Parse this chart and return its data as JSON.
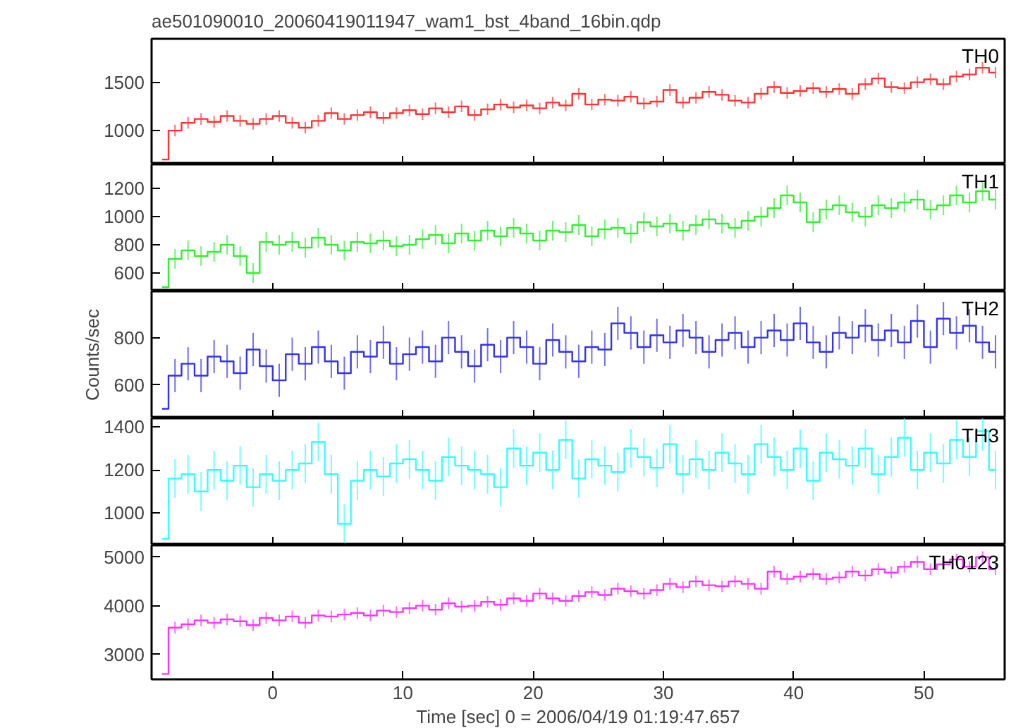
{
  "chart_data": [
    {
      "type": "step",
      "title": "ae501090010_20060419011947_wam1_bst_4band_16bin.qdp",
      "legend": "top right",
      "tick_labels": "y",
      "marker": "none",
      "x": [
        -8.5,
        -7.5,
        -6.5,
        -5.5,
        -4.5,
        -3.5,
        -2.5,
        -1.5,
        -0.5,
        0.5,
        1.5,
        2.5,
        3.5,
        4.5,
        5.5,
        6.5,
        7.5,
        8.5,
        9.5,
        10.5,
        11.5,
        12.5,
        13.5,
        14.5,
        15.5,
        16.5,
        17.5,
        18.5,
        19.5,
        20.5,
        21.5,
        22.5,
        23.5,
        24.5,
        25.5,
        26.5,
        27.5,
        28.5,
        29.5,
        30.5,
        31.5,
        32.5,
        33.5,
        34.5,
        35.5,
        36.5,
        37.5,
        38.5,
        39.5,
        40.5,
        41.5,
        42.5,
        43.5,
        44.5,
        45.5,
        46.5,
        47.5,
        48.5,
        49.5,
        50.5,
        51.5,
        52.5,
        53.5,
        54.5,
        55.5
      ],
      "xlim": [
        -9.3,
        56.2
      ],
      "xticks": [
        0,
        10,
        20,
        30,
        40,
        50
      ],
      "ylim": [
        650,
        1950
      ],
      "yticks": [
        1000,
        1500
      ],
      "series": [
        {
          "name": "TH0",
          "color": "#ff3333",
          "errors": [
            null,
            60,
            60,
            60,
            60,
            60,
            60,
            60,
            60,
            60,
            60,
            60,
            60,
            60,
            60,
            60,
            60,
            60,
            60,
            60,
            60,
            60,
            60,
            60,
            60,
            60,
            60,
            60,
            60,
            60,
            60,
            60,
            60,
            60,
            60,
            60,
            60,
            60,
            60,
            60,
            60,
            60,
            60,
            60,
            60,
            60,
            60,
            60,
            60,
            60,
            60,
            60,
            60,
            60,
            60,
            60,
            60,
            60,
            60,
            60,
            60,
            60,
            60,
            60,
            60
          ],
          "values": [
            700,
            1000,
            1080,
            1120,
            1090,
            1150,
            1100,
            1070,
            1120,
            1150,
            1080,
            1030,
            1100,
            1180,
            1120,
            1160,
            1190,
            1130,
            1180,
            1210,
            1170,
            1230,
            1190,
            1250,
            1160,
            1220,
            1270,
            1240,
            1260,
            1230,
            1290,
            1260,
            1380,
            1270,
            1320,
            1310,
            1350,
            1280,
            1300,
            1420,
            1290,
            1340,
            1400,
            1370,
            1310,
            1290,
            1380,
            1450,
            1390,
            1410,
            1440,
            1400,
            1430,
            1380,
            1480,
            1540,
            1450,
            1440,
            1500,
            1530,
            1480,
            1560,
            1580,
            1650,
            1600
          ]
        }
      ]
    },
    {
      "type": "step",
      "legend": "top right",
      "tick_labels": "y",
      "marker": "none",
      "x": [
        -8.5,
        -7.5,
        -6.5,
        -5.5,
        -4.5,
        -3.5,
        -2.5,
        -1.5,
        -0.5,
        0.5,
        1.5,
        2.5,
        3.5,
        4.5,
        5.5,
        6.5,
        7.5,
        8.5,
        9.5,
        10.5,
        11.5,
        12.5,
        13.5,
        14.5,
        15.5,
        16.5,
        17.5,
        18.5,
        19.5,
        20.5,
        21.5,
        22.5,
        23.5,
        24.5,
        25.5,
        26.5,
        27.5,
        28.5,
        29.5,
        30.5,
        31.5,
        32.5,
        33.5,
        34.5,
        35.5,
        36.5,
        37.5,
        38.5,
        39.5,
        40.5,
        41.5,
        42.5,
        43.5,
        44.5,
        45.5,
        46.5,
        47.5,
        48.5,
        49.5,
        50.5,
        51.5,
        52.5,
        53.5,
        54.5,
        55.5
      ],
      "xlim": [
        -9.3,
        56.2
      ],
      "xticks": [
        0,
        10,
        20,
        30,
        40,
        50
      ],
      "ylim": [
        470,
        1370
      ],
      "yticks": [
        600,
        800,
        1000,
        1200
      ],
      "series": [
        {
          "name": "TH1",
          "color": "#33ee33",
          "errors": [
            null,
            70,
            70,
            70,
            70,
            70,
            70,
            70,
            70,
            70,
            70,
            70,
            70,
            70,
            70,
            70,
            70,
            70,
            70,
            70,
            70,
            70,
            70,
            70,
            70,
            70,
            70,
            70,
            70,
            70,
            70,
            70,
            70,
            70,
            70,
            70,
            70,
            70,
            70,
            70,
            70,
            70,
            70,
            70,
            70,
            70,
            70,
            70,
            70,
            70,
            70,
            70,
            70,
            70,
            70,
            70,
            70,
            70,
            70,
            70,
            70,
            70,
            70,
            70,
            70
          ],
          "values": [
            500,
            700,
            760,
            720,
            750,
            800,
            720,
            600,
            820,
            800,
            820,
            780,
            850,
            800,
            760,
            820,
            810,
            830,
            790,
            800,
            840,
            870,
            810,
            880,
            830,
            900,
            860,
            920,
            880,
            830,
            900,
            890,
            940,
            860,
            910,
            920,
            880,
            960,
            930,
            950,
            900,
            940,
            980,
            950,
            920,
            970,
            1000,
            1060,
            1150,
            1100,
            960,
            1050,
            1080,
            1030,
            1000,
            1080,
            1060,
            1100,
            1120,
            1050,
            1080,
            1150,
            1100,
            1180,
            1120
          ]
        }
      ]
    },
    {
      "type": "step",
      "legend": "top right",
      "tick_labels": "y",
      "marker": "none",
      "ylabel": "Counts/sec",
      "x": [
        -8.5,
        -7.5,
        -6.5,
        -5.5,
        -4.5,
        -3.5,
        -2.5,
        -1.5,
        -0.5,
        0.5,
        1.5,
        2.5,
        3.5,
        4.5,
        5.5,
        6.5,
        7.5,
        8.5,
        9.5,
        10.5,
        11.5,
        12.5,
        13.5,
        14.5,
        15.5,
        16.5,
        17.5,
        18.5,
        19.5,
        20.5,
        21.5,
        22.5,
        23.5,
        24.5,
        25.5,
        26.5,
        27.5,
        28.5,
        29.5,
        30.5,
        31.5,
        32.5,
        33.5,
        34.5,
        35.5,
        36.5,
        37.5,
        38.5,
        39.5,
        40.5,
        41.5,
        42.5,
        43.5,
        44.5,
        45.5,
        46.5,
        47.5,
        48.5,
        49.5,
        50.5,
        51.5,
        52.5,
        53.5,
        54.5,
        55.5
      ],
      "xlim": [
        -9.3,
        56.2
      ],
      "xticks": [
        0,
        10,
        20,
        30,
        40,
        50
      ],
      "ylim": [
        460,
        995
      ],
      "yticks": [
        600,
        800
      ],
      "series": [
        {
          "name": "TH2",
          "color": "#3333ee",
          "errors": [
            null,
            70,
            70,
            70,
            70,
            70,
            70,
            70,
            70,
            70,
            70,
            70,
            70,
            70,
            70,
            70,
            70,
            70,
            70,
            70,
            70,
            70,
            70,
            70,
            70,
            70,
            70,
            70,
            70,
            70,
            70,
            70,
            70,
            70,
            70,
            70,
            70,
            70,
            70,
            70,
            70,
            70,
            70,
            70,
            70,
            70,
            70,
            70,
            70,
            70,
            70,
            70,
            70,
            70,
            70,
            70,
            70,
            70,
            70,
            70,
            70,
            70,
            70,
            70,
            70
          ],
          "values": [
            500,
            640,
            690,
            640,
            720,
            700,
            650,
            750,
            680,
            620,
            730,
            690,
            760,
            700,
            650,
            740,
            720,
            780,
            690,
            730,
            760,
            700,
            800,
            740,
            680,
            770,
            720,
            800,
            760,
            690,
            790,
            740,
            700,
            760,
            750,
            860,
            820,
            760,
            810,
            780,
            830,
            800,
            740,
            790,
            820,
            760,
            800,
            830,
            790,
            860,
            780,
            740,
            820,
            800,
            850,
            790,
            830,
            780,
            870,
            760,
            880,
            820,
            850,
            780,
            740
          ]
        }
      ]
    },
    {
      "type": "step",
      "legend": "top right",
      "tick_labels": "y",
      "marker": "none",
      "x": [
        -8.5,
        -7.5,
        -6.5,
        -5.5,
        -4.5,
        -3.5,
        -2.5,
        -1.5,
        -0.5,
        0.5,
        1.5,
        2.5,
        3.5,
        4.5,
        5.5,
        6.5,
        7.5,
        8.5,
        9.5,
        10.5,
        11.5,
        12.5,
        13.5,
        14.5,
        15.5,
        16.5,
        17.5,
        18.5,
        19.5,
        20.5,
        21.5,
        22.5,
        23.5,
        24.5,
        25.5,
        26.5,
        27.5,
        28.5,
        29.5,
        30.5,
        31.5,
        32.5,
        33.5,
        34.5,
        35.5,
        36.5,
        37.5,
        38.5,
        39.5,
        40.5,
        41.5,
        42.5,
        43.5,
        44.5,
        45.5,
        46.5,
        47.5,
        48.5,
        49.5,
        50.5,
        51.5,
        52.5,
        53.5,
        54.5,
        55.5
      ],
      "xlim": [
        -9.3,
        56.2
      ],
      "xticks": [
        0,
        10,
        20,
        30,
        40,
        50
      ],
      "ylim": [
        850,
        1440
      ],
      "yticks": [
        1000,
        1200,
        1400
      ],
      "series": [
        {
          "name": "TH3",
          "color": "#33ffff",
          "errors": [
            null,
            90,
            90,
            90,
            90,
            90,
            90,
            90,
            90,
            90,
            90,
            90,
            90,
            90,
            90,
            90,
            90,
            90,
            90,
            90,
            90,
            90,
            90,
            90,
            90,
            90,
            90,
            90,
            90,
            90,
            90,
            90,
            90,
            90,
            90,
            90,
            90,
            90,
            90,
            90,
            90,
            90,
            90,
            90,
            90,
            90,
            90,
            90,
            90,
            90,
            90,
            90,
            90,
            90,
            90,
            90,
            90,
            90,
            90,
            90,
            90,
            90,
            90,
            90,
            90
          ],
          "values": [
            880,
            1160,
            1180,
            1100,
            1200,
            1150,
            1220,
            1120,
            1180,
            1150,
            1200,
            1230,
            1330,
            1180,
            950,
            1150,
            1200,
            1170,
            1230,
            1250,
            1200,
            1150,
            1260,
            1220,
            1200,
            1180,
            1120,
            1300,
            1220,
            1280,
            1200,
            1340,
            1160,
            1250,
            1220,
            1190,
            1300,
            1260,
            1210,
            1320,
            1180,
            1250,
            1200,
            1280,
            1230,
            1180,
            1320,
            1260,
            1200,
            1300,
            1150,
            1280,
            1250,
            1220,
            1300,
            1180,
            1260,
            1350,
            1200,
            1280,
            1230,
            1340,
            1260,
            1380,
            1200
          ]
        }
      ]
    },
    {
      "type": "step",
      "legend": "top right",
      "marker": "none",
      "xlabel": "Time [sec] 0 = 2006/04/19 01:19:47.657",
      "x": [
        -8.5,
        -7.5,
        -6.5,
        -5.5,
        -4.5,
        -3.5,
        -2.5,
        -1.5,
        -0.5,
        0.5,
        1.5,
        2.5,
        3.5,
        4.5,
        5.5,
        6.5,
        7.5,
        8.5,
        9.5,
        10.5,
        11.5,
        12.5,
        13.5,
        14.5,
        15.5,
        16.5,
        17.5,
        18.5,
        19.5,
        20.5,
        21.5,
        22.5,
        23.5,
        24.5,
        25.5,
        26.5,
        27.5,
        28.5,
        29.5,
        30.5,
        31.5,
        32.5,
        33.5,
        34.5,
        35.5,
        36.5,
        37.5,
        38.5,
        39.5,
        40.5,
        41.5,
        42.5,
        43.5,
        44.5,
        45.5,
        46.5,
        47.5,
        48.5,
        49.5,
        50.5,
        51.5,
        52.5,
        53.5,
        54.5,
        55.5
      ],
      "xlim": [
        -9.3,
        56.2
      ],
      "xticks": [
        0,
        10,
        20,
        30,
        40,
        50
      ],
      "ylim": [
        2490,
        5240
      ],
      "yticks": [
        3000,
        4000,
        5000
      ],
      "series": [
        {
          "name": "TH0123",
          "color": "#ff33ff",
          "errors": [
            null,
            120,
            120,
            120,
            120,
            120,
            120,
            120,
            120,
            120,
            120,
            120,
            120,
            120,
            120,
            120,
            120,
            120,
            120,
            120,
            120,
            120,
            120,
            120,
            120,
            120,
            120,
            120,
            120,
            120,
            120,
            120,
            120,
            120,
            120,
            120,
            120,
            120,
            120,
            120,
            120,
            120,
            120,
            120,
            120,
            120,
            120,
            120,
            120,
            120,
            120,
            120,
            120,
            120,
            120,
            120,
            120,
            120,
            120,
            120,
            120,
            120,
            120,
            120,
            120
          ],
          "values": [
            2600,
            3550,
            3620,
            3700,
            3650,
            3720,
            3680,
            3600,
            3750,
            3700,
            3780,
            3650,
            3800,
            3780,
            3820,
            3850,
            3800,
            3900,
            3870,
            3950,
            4000,
            3920,
            4050,
            3980,
            4000,
            4080,
            4020,
            4150,
            4100,
            4250,
            4150,
            4100,
            4200,
            4280,
            4220,
            4350,
            4300,
            4250,
            4320,
            4450,
            4380,
            4500,
            4420,
            4400,
            4500,
            4450,
            4350,
            4700,
            4550,
            4600,
            4650,
            4550,
            4580,
            4700,
            4620,
            4750,
            4680,
            4800,
            4900,
            4750,
            4850,
            4950,
            4800,
            5000,
            4750
          ]
        }
      ]
    }
  ]
}
